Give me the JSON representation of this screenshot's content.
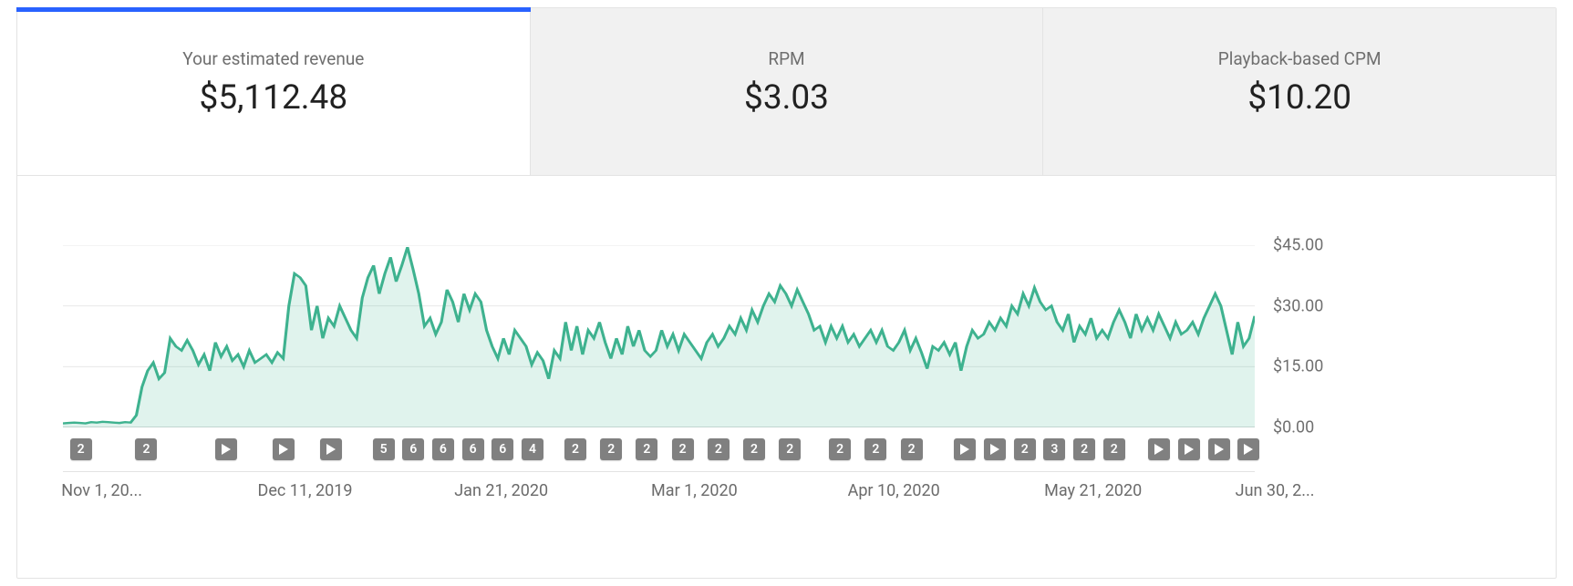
{
  "accent_color": "#2962ff",
  "tabs": [
    {
      "id": "revenue",
      "label": "Your estimated revenue",
      "value": "$5,112.48",
      "active": true
    },
    {
      "id": "rpm",
      "label": "RPM",
      "value": "$3.03",
      "active": false
    },
    {
      "id": "cpm",
      "label": "Playback-based CPM",
      "value": "$10.20",
      "active": false
    }
  ],
  "chart": {
    "type": "area",
    "line_color": "#3eb28f",
    "fill_color": "#3eb28f",
    "grid_color": "#e8e8e8",
    "baseline_color": "#b9b9b9",
    "label_color": "#6f6f6f",
    "label_fontsize": 18,
    "ylim": [
      0,
      45
    ],
    "ytick_step": 15,
    "ylabels": [
      "$45.00",
      "$30.00",
      "$15.00",
      "$0.00"
    ],
    "x_ticks": [
      {
        "pos": 0.0,
        "label": "Nov 1, 20..."
      },
      {
        "pos": 0.165,
        "label": "Dec 11, 2019"
      },
      {
        "pos": 0.33,
        "label": "Jan 21, 2020"
      },
      {
        "pos": 0.495,
        "label": "Mar 1, 2020"
      },
      {
        "pos": 0.66,
        "label": "Apr 10, 2020"
      },
      {
        "pos": 0.825,
        "label": "May 21, 2020"
      },
      {
        "pos": 0.985,
        "label": "Jun 30, 2..."
      }
    ],
    "series": [
      1.0,
      1.1,
      1.2,
      1.1,
      1.0,
      1.3,
      1.2,
      1.4,
      1.3,
      1.2,
      1.1,
      1.3,
      1.2,
      3.0,
      10.0,
      14.0,
      16.0,
      12.0,
      13.5,
      22.0,
      20.0,
      19.0,
      21.5,
      19.0,
      15.5,
      18.0,
      14.0,
      21.0,
      17.5,
      20.0,
      16.5,
      18.0,
      15.0,
      19.0,
      16.0,
      17.0,
      18.0,
      16.0,
      18.5,
      17.0,
      30.0,
      38.0,
      37.0,
      35.0,
      24.0,
      30.0,
      22.0,
      27.0,
      25.0,
      30.0,
      27.0,
      24.0,
      22.0,
      32.0,
      37.0,
      40.0,
      33.0,
      38.0,
      42.0,
      36.0,
      40.0,
      44.5,
      39.0,
      33.0,
      25.0,
      27.0,
      23.0,
      26.0,
      34.0,
      31.0,
      26.0,
      33.0,
      29.0,
      33.0,
      31.0,
      24.0,
      20.0,
      17.0,
      22.0,
      18.0,
      24.0,
      22.0,
      20.0,
      15.5,
      18.5,
      16.5,
      12.0,
      19.0,
      17.0,
      26.0,
      19.0,
      25.0,
      18.0,
      24.0,
      22.0,
      26.0,
      21.0,
      17.0,
      22.0,
      18.0,
      25.0,
      20.0,
      24.0,
      19.0,
      17.5,
      19.0,
      24.0,
      20.0,
      23.0,
      19.0,
      23.0,
      21.0,
      19.0,
      17.0,
      21.0,
      23.0,
      20.0,
      22.0,
      25.0,
      23.0,
      27.0,
      24.0,
      29.0,
      26.0,
      30.0,
      33.0,
      31.0,
      35.0,
      33.0,
      30.0,
      34.0,
      31.0,
      28.0,
      24.0,
      25.0,
      21.0,
      25.0,
      22.0,
      25.0,
      21.0,
      23.0,
      20.0,
      22.0,
      24.0,
      21.0,
      24.0,
      20.0,
      19.0,
      21.0,
      24.0,
      19.0,
      22.0,
      18.5,
      14.5,
      20.0,
      19.0,
      21.0,
      18.0,
      21.0,
      14.0,
      20.0,
      24.0,
      22.0,
      23.0,
      26.0,
      24.0,
      27.0,
      25.0,
      30.0,
      28.0,
      33.0,
      30.0,
      34.5,
      31.0,
      29.0,
      30.0,
      26.0,
      24.0,
      28.0,
      21.0,
      25.0,
      23.0,
      27.0,
      22.0,
      24.0,
      22.0,
      26.0,
      29.0,
      26.0,
      22.0,
      28.0,
      24.0,
      27.0,
      24.0,
      28.0,
      25.0,
      22.0,
      26.0,
      23.0,
      24.0,
      26.0,
      23.0,
      27.0,
      30.0,
      33.0,
      30.0,
      24.0,
      18.0,
      26.0,
      20.0,
      22.0,
      27.5
    ],
    "markers": [
      {
        "pos": 0.015,
        "type": "num",
        "label": "2"
      },
      {
        "pos": 0.07,
        "type": "num",
        "label": "2"
      },
      {
        "pos": 0.137,
        "type": "play"
      },
      {
        "pos": 0.185,
        "type": "play"
      },
      {
        "pos": 0.225,
        "type": "play"
      },
      {
        "pos": 0.269,
        "type": "num",
        "label": "5"
      },
      {
        "pos": 0.294,
        "type": "num",
        "label": "6"
      },
      {
        "pos": 0.319,
        "type": "num",
        "label": "6"
      },
      {
        "pos": 0.344,
        "type": "num",
        "label": "6"
      },
      {
        "pos": 0.369,
        "type": "num",
        "label": "6"
      },
      {
        "pos": 0.394,
        "type": "num",
        "label": "4"
      },
      {
        "pos": 0.43,
        "type": "num",
        "label": "2"
      },
      {
        "pos": 0.46,
        "type": "num",
        "label": "2"
      },
      {
        "pos": 0.49,
        "type": "num",
        "label": "2"
      },
      {
        "pos": 0.52,
        "type": "num",
        "label": "2"
      },
      {
        "pos": 0.55,
        "type": "num",
        "label": "2"
      },
      {
        "pos": 0.58,
        "type": "num",
        "label": "2"
      },
      {
        "pos": 0.61,
        "type": "num",
        "label": "2"
      },
      {
        "pos": 0.652,
        "type": "num",
        "label": "2"
      },
      {
        "pos": 0.682,
        "type": "num",
        "label": "2"
      },
      {
        "pos": 0.712,
        "type": "num",
        "label": "2"
      },
      {
        "pos": 0.757,
        "type": "play"
      },
      {
        "pos": 0.782,
        "type": "play"
      },
      {
        "pos": 0.807,
        "type": "num",
        "label": "2"
      },
      {
        "pos": 0.832,
        "type": "num",
        "label": "3"
      },
      {
        "pos": 0.857,
        "type": "num",
        "label": "2"
      },
      {
        "pos": 0.882,
        "type": "num",
        "label": "2"
      },
      {
        "pos": 0.92,
        "type": "play"
      },
      {
        "pos": 0.945,
        "type": "play"
      },
      {
        "pos": 0.97,
        "type": "play"
      },
      {
        "pos": 0.995,
        "type": "play"
      }
    ]
  }
}
